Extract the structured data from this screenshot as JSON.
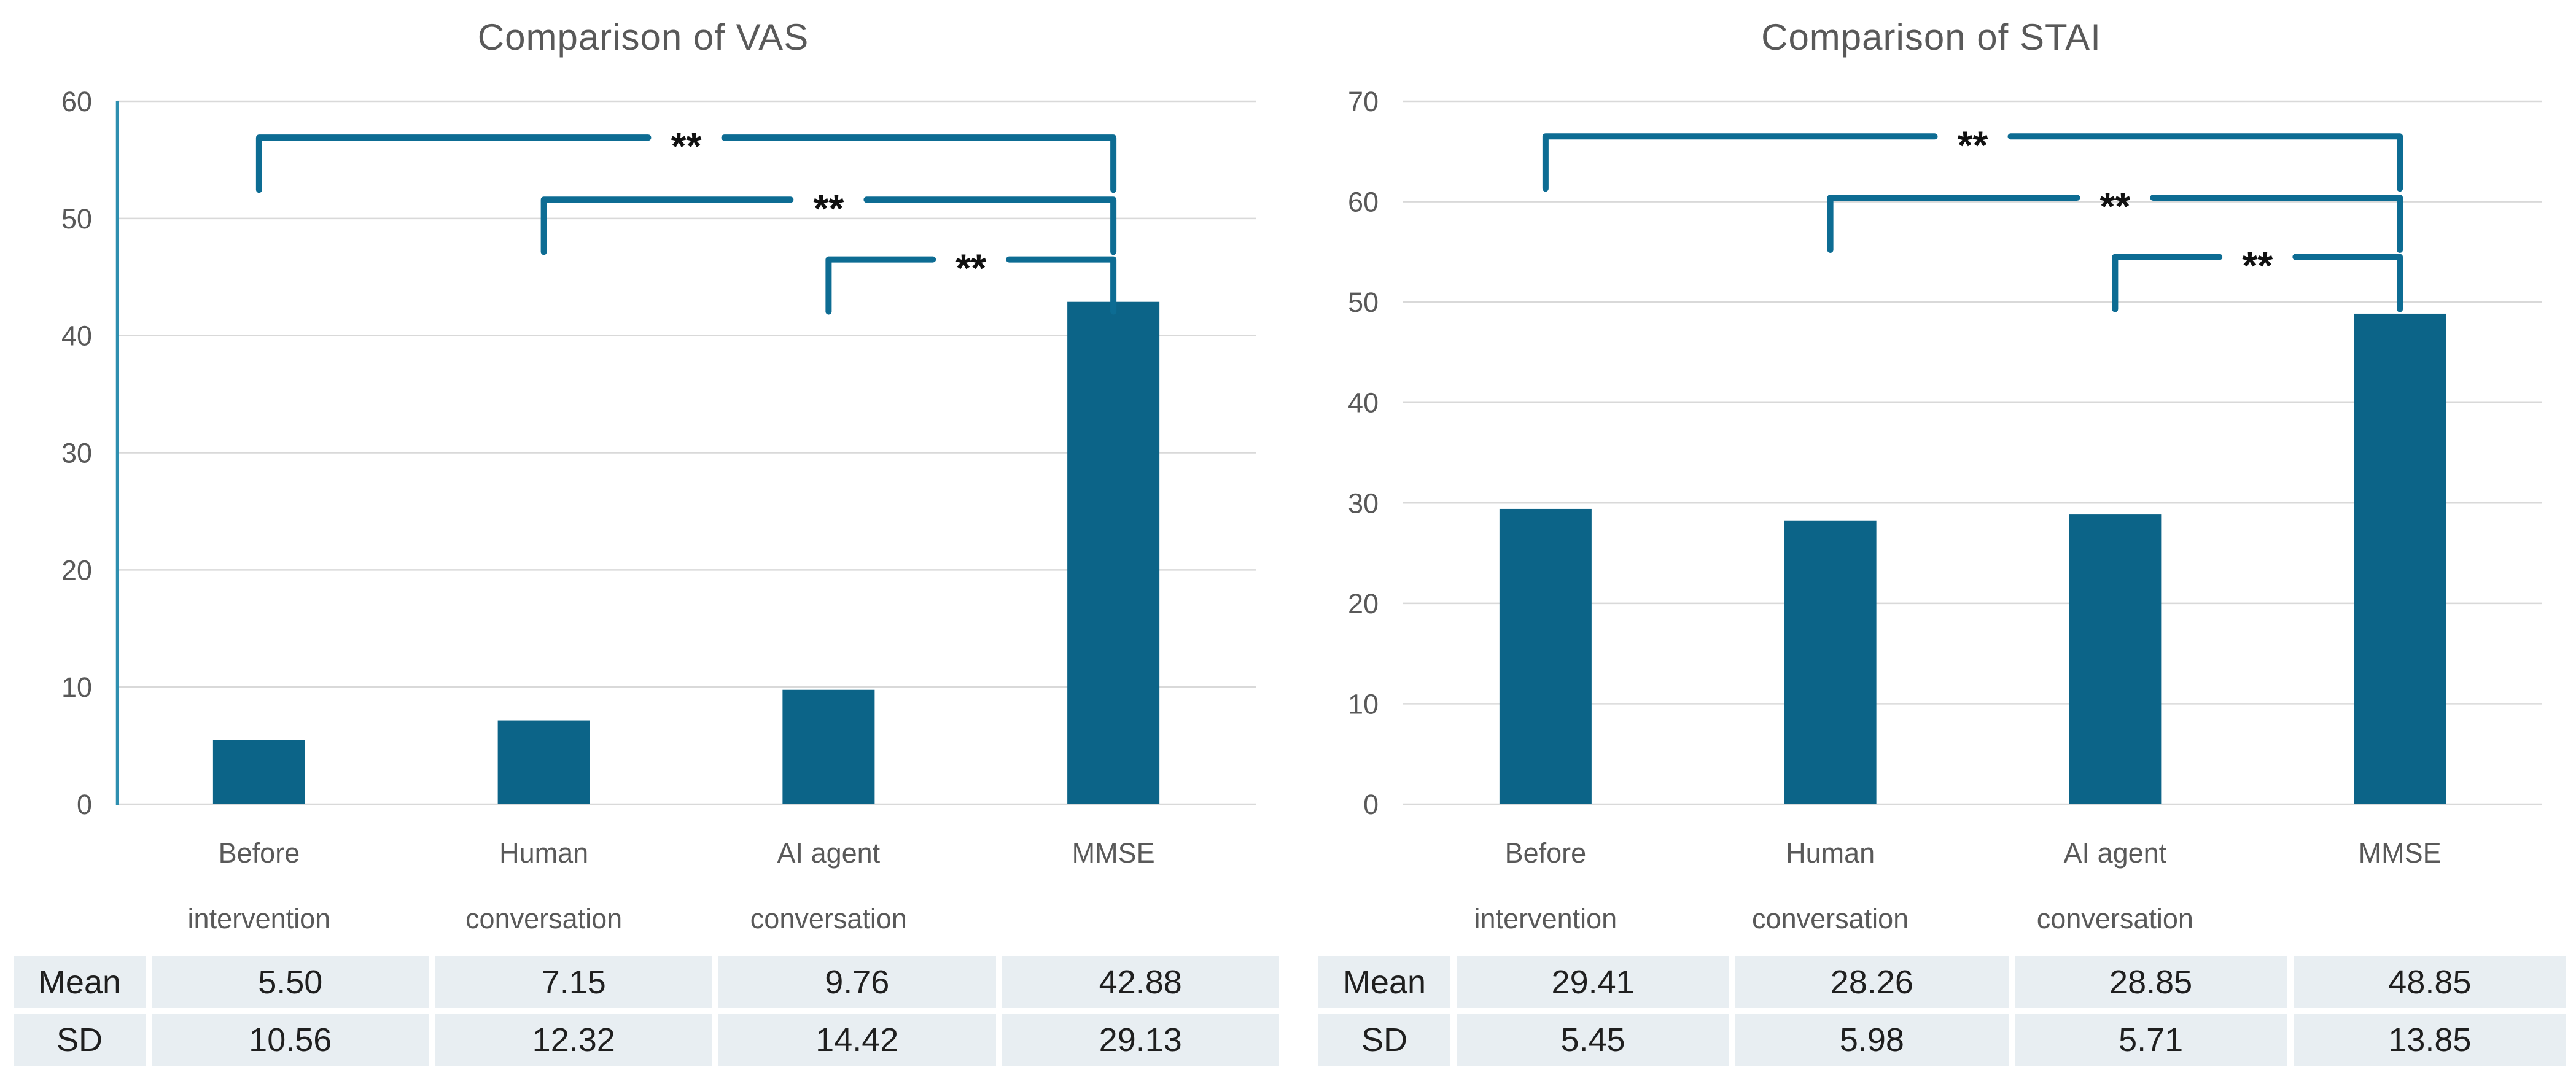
{
  "figure": {
    "background": "#FFFFFF"
  },
  "colors": {
    "bar": "#0C6488",
    "bracket": "#0D6C93",
    "axis_line": "#2E8FB0",
    "gridline": "#D9D9D9",
    "axis_text": "#595959",
    "title_text": "#595959",
    "category_text": "#595959",
    "table_text": "#1F1F1F",
    "table_cell_bg": "#E8EEF2",
    "significance_text": "#111111"
  },
  "chart_data": [
    {
      "type": "bar",
      "title": "Comparison of VAS",
      "categories": [
        "Before intervention",
        "Human conversation",
        "AI agent conversation",
        "MMSE"
      ],
      "category_label_lines": [
        [
          "Before",
          "intervention"
        ],
        [
          "Human",
          "conversation"
        ],
        [
          "AI agent",
          "conversation"
        ],
        [
          "MMSE"
        ]
      ],
      "values": [
        5.5,
        7.15,
        9.76,
        42.88
      ],
      "ylim": [
        0,
        60
      ],
      "ytick_step": 10,
      "ytick_labels": [
        "0",
        "10",
        "20",
        "30",
        "40",
        "50",
        "60"
      ],
      "grid": true,
      "y_axis_line": true,
      "legend_position": "none",
      "significance_brackets": [
        {
          "from": 0,
          "to": 3,
          "label": "**",
          "height": 56.9
        },
        {
          "from": 1,
          "to": 3,
          "label": "**",
          "height": 51.6
        },
        {
          "from": 2,
          "to": 3,
          "label": "**",
          "height": 46.5
        }
      ],
      "table": {
        "rows": [
          {
            "label": "Mean",
            "values": [
              "5.50",
              "7.15",
              "9.76",
              "42.88"
            ]
          },
          {
            "label": "SD",
            "values": [
              "10.56",
              "12.32",
              "14.42",
              "29.13"
            ]
          }
        ]
      }
    },
    {
      "type": "bar",
      "title": "Comparison of STAI",
      "categories": [
        "Before intervention",
        "Human conversation",
        "AI agent conversation",
        "MMSE"
      ],
      "category_label_lines": [
        [
          "Before",
          "intervention"
        ],
        [
          "Human",
          "conversation"
        ],
        [
          "AI agent",
          "conversation"
        ],
        [
          "MMSE"
        ]
      ],
      "values": [
        29.41,
        28.26,
        28.85,
        48.85
      ],
      "ylim": [
        0,
        70
      ],
      "ytick_step": 10,
      "ytick_labels": [
        "0",
        "10",
        "20",
        "30",
        "40",
        "50",
        "60",
        "70"
      ],
      "grid": true,
      "y_axis_line": false,
      "legend_position": "none",
      "significance_brackets": [
        {
          "from": 0,
          "to": 3,
          "label": "**",
          "height": 66.5
        },
        {
          "from": 1,
          "to": 3,
          "label": "**",
          "height": 60.4
        },
        {
          "from": 2,
          "to": 3,
          "label": "**",
          "height": 54.5
        }
      ],
      "table": {
        "rows": [
          {
            "label": "Mean",
            "values": [
              "29.41",
              "28.26",
              "28.85",
              "48.85"
            ]
          },
          {
            "label": "SD",
            "values": [
              "5.45",
              "5.98",
              "5.71",
              "13.85"
            ]
          }
        ]
      }
    }
  ]
}
